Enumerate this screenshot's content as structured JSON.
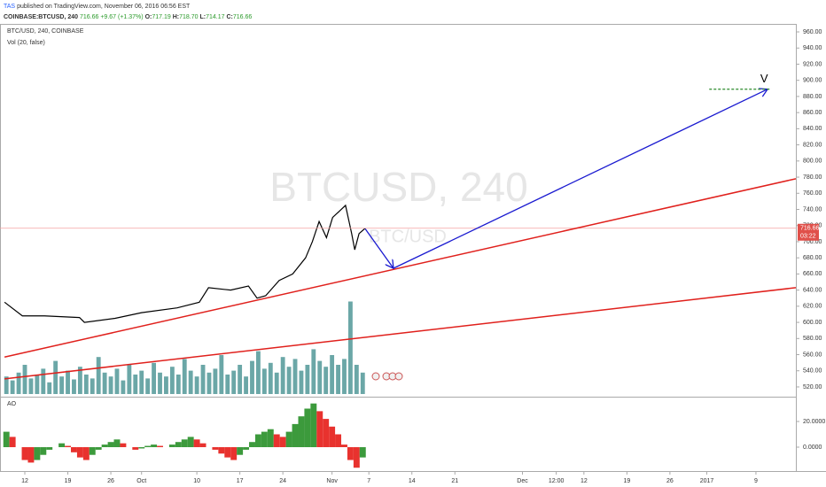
{
  "header": {
    "author": "TAS",
    "published": "published on TradingView.com, November 06, 2016 06:56 EST",
    "symbol": "COINBASE:BTCUSD, 240",
    "last": "716.66",
    "change": "+9.67 (+1.37%)",
    "o_label": "O:",
    "o": "717.19",
    "h_label": "H:",
    "h": "718.70",
    "l_label": "L:",
    "l": "714.17",
    "c_label": "C:",
    "c": "716.66"
  },
  "chart_data": {
    "type": "line",
    "legend": "BTC/USD, 240, COINBASE",
    "watermark": "BTCUSD, 240",
    "watermark2": "BTC/USD",
    "color": "#000000",
    "grid": false,
    "xlim": [
      -4.04,
      125.5
    ],
    "ylim": [
      507.9,
      969.9
    ],
    "xticks": [
      {
        "value": 0,
        "label": "12"
      },
      {
        "value": 7,
        "label": "19"
      },
      {
        "value": 14,
        "label": "26"
      },
      {
        "value": 19,
        "label": "Oct"
      },
      {
        "value": 28,
        "label": "10"
      },
      {
        "value": 35,
        "label": "17"
      },
      {
        "value": 42,
        "label": "24"
      },
      {
        "value": 50,
        "label": "Nov"
      },
      {
        "value": 56,
        "label": "7"
      },
      {
        "value": 63,
        "label": "14"
      },
      {
        "value": 70,
        "label": "21"
      },
      {
        "value": 81,
        "label": "Dec"
      },
      {
        "value": 86.5,
        "label": "12:00"
      },
      {
        "value": 91,
        "label": "12"
      },
      {
        "value": 98,
        "label": "19"
      },
      {
        "value": 105,
        "label": "26"
      },
      {
        "value": 111,
        "label": "2017"
      },
      {
        "value": 119,
        "label": "9"
      }
    ],
    "yticks": [
      {
        "value": 960,
        "label": "960.00"
      },
      {
        "value": 940,
        "label": "940.00"
      },
      {
        "value": 920,
        "label": "920.00"
      },
      {
        "value": 900,
        "label": "900.00"
      },
      {
        "value": 880,
        "label": "880.00"
      },
      {
        "value": 860,
        "label": "860.00"
      },
      {
        "value": 840,
        "label": "840.00"
      },
      {
        "value": 820,
        "label": "820.00"
      },
      {
        "value": 800,
        "label": "800.00"
      },
      {
        "value": 780,
        "label": "780.00"
      },
      {
        "value": 760,
        "label": "760.00"
      },
      {
        "value": 740,
        "label": "740.00"
      },
      {
        "value": 720,
        "label": "720.00"
      },
      {
        "value": 700,
        "label": "700.00"
      },
      {
        "value": 680,
        "label": "680.00"
      },
      {
        "value": 660,
        "label": "660.00"
      },
      {
        "value": 640,
        "label": "640.00"
      },
      {
        "value": 620,
        "label": "620.00"
      },
      {
        "value": 600,
        "label": "600.00"
      },
      {
        "value": 580,
        "label": "580.00"
      },
      {
        "value": 560,
        "label": "560.00"
      },
      {
        "value": 540,
        "label": "540.00"
      },
      {
        "value": 520,
        "label": "520.00"
      }
    ],
    "price": {
      "x": [
        -3.3,
        -0.4,
        3.2,
        8.9,
        9.7,
        14.7,
        19,
        24.8,
        28.4,
        29.9,
        33.5,
        36.4,
        37.8,
        39.2,
        41.4,
        43.6,
        45.7,
        46.8,
        47.9,
        49.1,
        50.1,
        52.2,
        53.2,
        53.7,
        54.4,
        55.4
      ],
      "values": [
        625,
        608,
        608,
        606,
        600,
        605,
        612,
        618,
        625,
        643,
        640,
        645,
        630,
        633,
        652,
        660,
        680,
        700,
        725,
        705,
        730,
        745,
        710,
        690,
        710,
        716.66
      ],
      "last_label": "716.66",
      "countdown": "03:22",
      "label_color": "#e0504a"
    },
    "x": [
      -3,
      -2,
      -1,
      0,
      1,
      2,
      3,
      4,
      5,
      6,
      7,
      8,
      9,
      10,
      11,
      12,
      13,
      14,
      15,
      16,
      17,
      18,
      19,
      20,
      21,
      22,
      23,
      24,
      25,
      26,
      27,
      28,
      29,
      30,
      31,
      32,
      33,
      34,
      35,
      36,
      37,
      38,
      39,
      40,
      41,
      42,
      43,
      44,
      45,
      46,
      47,
      48,
      49,
      50,
      51,
      52,
      53,
      54,
      55
    ],
    "volume": {
      "name": "Vol (20, false)",
      "ylim": [
        0,
        100
      ],
      "color": "#3a8a8a",
      "values": [
        18,
        14,
        22,
        30,
        16,
        20,
        26,
        12,
        34,
        18,
        24,
        15,
        28,
        20,
        16,
        38,
        22,
        18,
        26,
        14,
        30,
        20,
        24,
        16,
        32,
        22,
        18,
        28,
        20,
        36,
        24,
        18,
        30,
        22,
        26,
        40,
        20,
        24,
        30,
        18,
        34,
        44,
        26,
        32,
        22,
        38,
        28,
        36,
        24,
        30,
        46,
        34,
        28,
        40,
        30,
        36,
        95,
        30,
        22
      ]
    },
    "ao": {
      "name": "AO",
      "ylim": [
        -18.6,
        38.6
      ],
      "yticks": [
        {
          "value": 0,
          "label": "0.0000"
        },
        {
          "value": 20,
          "label": "20.0000"
        }
      ],
      "up_color": "#3c9a3c",
      "down_color": "#e8322e",
      "values": [
        12,
        8,
        0,
        -10,
        -12,
        -10,
        -6,
        -2,
        0,
        3,
        1,
        -4,
        -8,
        -10,
        -6,
        -2,
        2,
        4,
        6,
        3,
        0,
        -2,
        -1,
        1,
        2,
        1,
        0,
        2,
        4,
        6,
        8,
        6,
        3,
        0,
        -2,
        -5,
        -8,
        -10,
        -6,
        -2,
        4,
        10,
        12,
        14,
        10,
        8,
        12,
        18,
        24,
        30,
        34,
        28,
        22,
        16,
        10,
        2,
        -10,
        -16,
        -8
      ]
    },
    "trendlines": [
      {
        "color": "#e0201c",
        "x": [
          -3.3,
          125.5
        ],
        "values": [
          557,
          778
        ]
      },
      {
        "color": "#e0201c",
        "x": [
          -3.3,
          125.5
        ],
        "values": [
          530,
          643
        ]
      }
    ],
    "arrow": {
      "color": "#1a1ad0",
      "x": [
        55.4,
        60,
        120.9
      ],
      "values": [
        716,
        667,
        889
      ]
    },
    "target": {
      "color": "#2a8a2a",
      "x": [
        111.4,
        121.5
      ],
      "value": 889,
      "label": "V"
    }
  }
}
